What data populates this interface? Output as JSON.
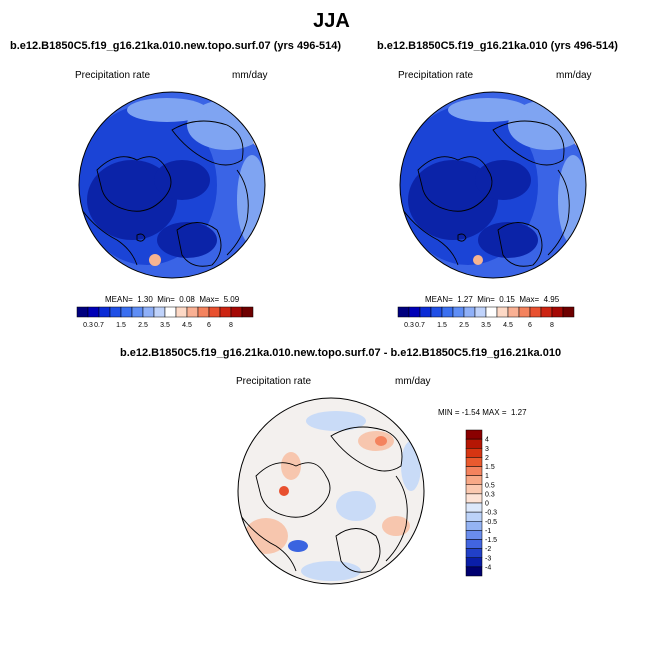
{
  "season": "JJA",
  "panels": [
    {
      "case": "b.e12.B1850C5.f19_g16.21ka.010.new.topo.surf.07 (yrs 496-514)",
      "variable": "Precipitation rate",
      "units": "mm/day",
      "stats": {
        "mean_label": "MEAN=",
        "mean": "1.30",
        "min_label": "Min=",
        "min": "0.08",
        "max_label": "Max=",
        "max": "5.09"
      }
    },
    {
      "case": "b.e12.B1850C5.f19_g16.21ka.010 (yrs 496-514)",
      "variable": "Precipitation rate",
      "units": "mm/day",
      "stats": {
        "mean_label": "MEAN=",
        "mean": "1.27",
        "min_label": "Min=",
        "min": "0.15",
        "max_label": "Max=",
        "max": "4.95"
      }
    }
  ],
  "abs_colorbar": {
    "ticks": [
      "0.3",
      "0.7",
      "1",
      "1.5",
      "2",
      "2.5",
      "3",
      "3.5",
      "4",
      "4.5",
      "5",
      "6",
      "7",
      "8"
    ],
    "shown_labels": [
      "0.3",
      "0.7",
      "1.5",
      "2.5",
      "3.5",
      "4.5",
      "6",
      "8"
    ],
    "colors": [
      "#00007f",
      "#0000b7",
      "#0a2bd6",
      "#1f4fe6",
      "#3a6ff0",
      "#5f8ef5",
      "#8fb0f8",
      "#c0d3fb",
      "#ffffff",
      "#fdd9c6",
      "#f9b093",
      "#f4835e",
      "#e8502f",
      "#cc2412",
      "#a40804",
      "#6e0000"
    ]
  },
  "diff_panel": {
    "title": "b.e12.B1850C5.f19_g16.21ka.010.new.topo.surf.07 - b.e12.B1850C5.f19_g16.21ka.010",
    "variable": "Precipitation rate",
    "units": "mm/day",
    "stats": {
      "min_label": "MIN =",
      "min": "-1.54",
      "max_label": "MAX =",
      "max": "1.27"
    }
  },
  "diff_colorbar": {
    "labels": [
      "4",
      "3",
      "2",
      "1.5",
      "1",
      "0.5",
      "0.3",
      "0",
      "-0.3",
      "-0.5",
      "-1",
      "-1.5",
      "-2",
      "-3",
      "-4"
    ],
    "colors": [
      "#8a0000",
      "#b51604",
      "#d63512",
      "#ea5a2e",
      "#f4835e",
      "#f8a987",
      "#fbc9b0",
      "#fde3d6",
      "#dce8fb",
      "#bcd2f8",
      "#94b3f3",
      "#6a8ded",
      "#4265e0",
      "#2140c8",
      "#0a1ea8",
      "#000070"
    ]
  },
  "colors": {
    "ocean_blue": "#3a64e6",
    "deep_blue": "#0b23a8",
    "mid_blue": "#1b44d6",
    "light_blue": "#7fa4f2",
    "diff_neutral": "#f3f0ee",
    "diff_warm": "#f7c6ae",
    "diff_cool": "#c9dbf7"
  }
}
